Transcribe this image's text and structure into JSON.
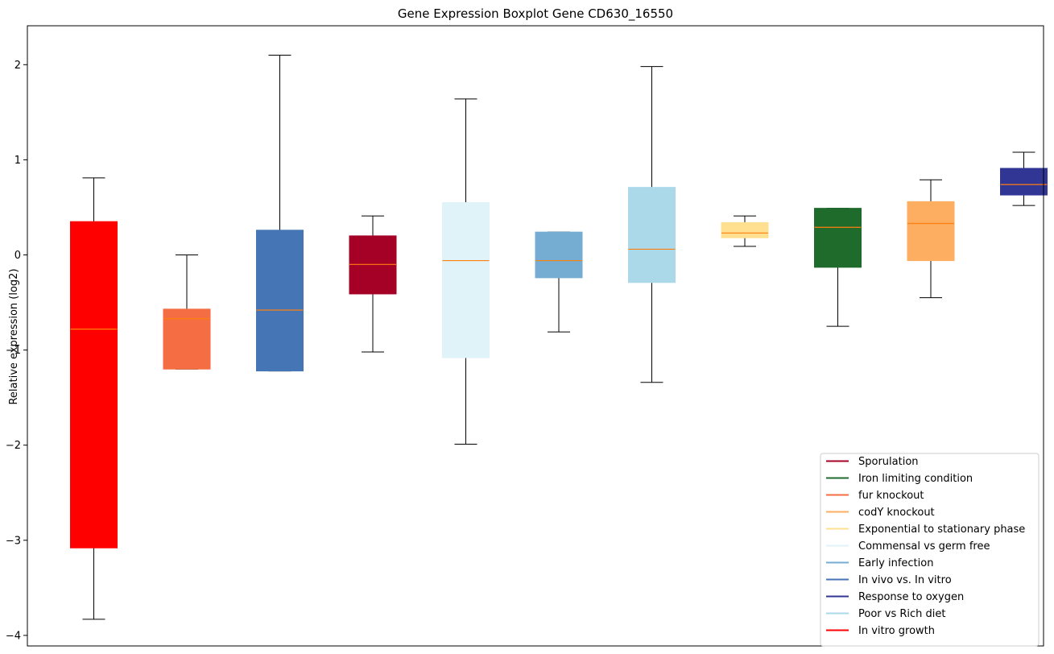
{
  "chart_data": {
    "type": "boxplot",
    "title": "Gene Expression Boxplot Gene CD630_16550",
    "xlabel": "",
    "ylabel": "Relative expression (log2)",
    "ylim": [
      -4.1,
      2.4
    ],
    "yticks": [
      2,
      1,
      0,
      -1,
      -2,
      -3,
      -4
    ],
    "ytick_labels": [
      "2",
      "1",
      "0",
      "−1",
      "−2",
      "−3",
      "−4"
    ],
    "legend_position": "lower-right",
    "boxes": [
      {
        "name": "In vitro growth",
        "color": "#ff0000",
        "whisker_low": -3.83,
        "q1": -3.08,
        "median": -0.78,
        "q3": 0.35,
        "whisker_high": 0.81
      },
      {
        "name": "fur knockout",
        "color": "#f46d43",
        "whisker_low": -1.2,
        "q1": -1.2,
        "median": -0.67,
        "q3": -0.57,
        "whisker_high": 0.0
      },
      {
        "name": "In vivo vs. In vitro",
        "color": "#4575b4",
        "whisker_low": -1.22,
        "q1": -1.22,
        "median": -0.58,
        "q3": 0.26,
        "whisker_high": 2.1
      },
      {
        "name": "Sporulation",
        "color": "#a50026",
        "whisker_low": -1.02,
        "q1": -0.41,
        "median": -0.1,
        "q3": 0.2,
        "whisker_high": 0.41
      },
      {
        "name": "Commensal vs germ free",
        "color": "#e0f3f8",
        "whisker_low": -1.99,
        "q1": -1.08,
        "median": -0.06,
        "q3": 0.55,
        "whisker_high": 1.64
      },
      {
        "name": "Early infection",
        "color": "#74add1",
        "whisker_low": -0.81,
        "q1": -0.24,
        "median": -0.06,
        "q3": 0.24,
        "whisker_high": 0.24
      },
      {
        "name": "Poor vs Rich diet",
        "color": "#abd9e9",
        "whisker_low": -1.34,
        "q1": -0.29,
        "median": 0.06,
        "q3": 0.71,
        "whisker_high": 1.98
      },
      {
        "name": "Exponential to stationary phase",
        "color": "#fee090",
        "whisker_low": 0.09,
        "q1": 0.18,
        "median": 0.23,
        "q3": 0.34,
        "whisker_high": 0.41
      },
      {
        "name": "Iron limiting condition",
        "color": "#1f6b2c",
        "whisker_low": -0.75,
        "q1": -0.13,
        "median": 0.29,
        "q3": 0.49,
        "whisker_high": 0.49
      },
      {
        "name": "codY knockout",
        "color": "#fdae61",
        "whisker_low": -0.45,
        "q1": -0.06,
        "median": 0.33,
        "q3": 0.56,
        "whisker_high": 0.79
      },
      {
        "name": "Response to oxygen",
        "color": "#313695",
        "whisker_low": 0.52,
        "q1": 0.63,
        "median": 0.74,
        "q3": 0.91,
        "whisker_high": 1.08
      }
    ],
    "median_color": "#ff7f0e",
    "legend": [
      {
        "label": "Sporulation",
        "color": "#a50026"
      },
      {
        "label": "Iron limiting condition",
        "color": "#1f6b2c"
      },
      {
        "label": "fur knockout",
        "color": "#f46d43"
      },
      {
        "label": "codY knockout",
        "color": "#fdae61"
      },
      {
        "label": "Exponential to stationary phase",
        "color": "#fee090"
      },
      {
        "label": "Commensal vs germ free",
        "color": "#e0f3f8"
      },
      {
        "label": "Early infection",
        "color": "#74add1"
      },
      {
        "label": "In vivo vs. In vitro",
        "color": "#4575b4"
      },
      {
        "label": "Response to oxygen",
        "color": "#313695"
      },
      {
        "label": "Poor vs Rich diet",
        "color": "#abd9e9"
      },
      {
        "label": "In vitro growth",
        "color": "#ff0000"
      }
    ]
  }
}
